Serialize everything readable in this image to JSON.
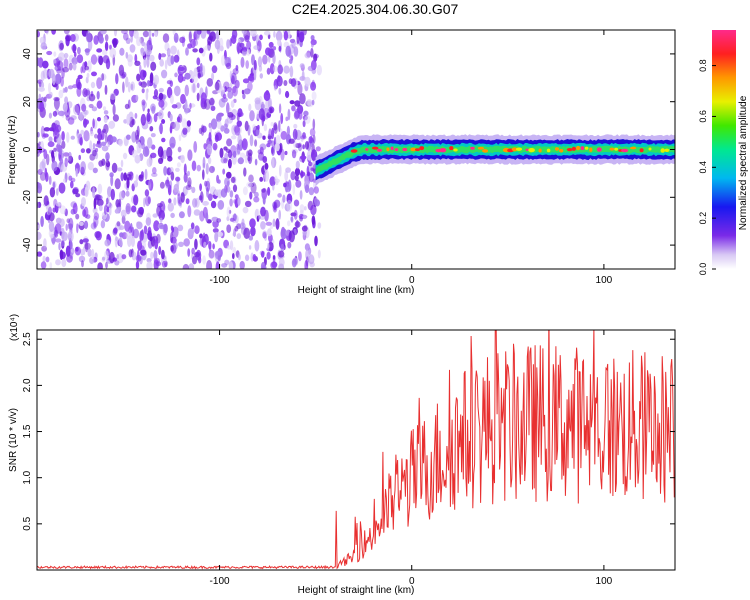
{
  "title": "C2E4.2025.304.06.30.G07",
  "colors": {
    "signal": "#e83030",
    "scatter": "#7a2ae8",
    "axis": "#000000"
  },
  "chart_data": [
    {
      "type": "heatmap",
      "xlabel": "Height of straight line (km)",
      "ylabel": "Frequency (Hz)",
      "xlim": [
        -195,
        137
      ],
      "ylim": [
        -50,
        50
      ],
      "xticks": [
        -100,
        0,
        100
      ],
      "yticks": [
        -40,
        -20,
        0,
        20,
        40
      ],
      "noise_region_x": [
        -195,
        -48
      ],
      "ridge": {
        "x": [
          -50,
          -45,
          -40,
          -35,
          -30,
          -25,
          -20,
          0,
          50,
          100,
          135
        ],
        "freq": [
          -9,
          -7,
          -5,
          -3,
          -1,
          0,
          0,
          0,
          0,
          0,
          0
        ]
      },
      "colorbar": {
        "label": "Normalized spectral amplitude",
        "ticks": [
          0.0,
          0.2,
          0.4,
          0.6,
          0.8
        ],
        "tick_labels": [
          "0.0",
          "0.2",
          "0.4",
          "0.6",
          "0.8"
        ],
        "range": [
          0,
          0.94
        ]
      }
    },
    {
      "type": "line",
      "xlabel": "Height of straight line (km)",
      "ylabel": "SNR (10 * v/v)",
      "scale_label": "(x10⁴)",
      "xlim": [
        -195,
        137
      ],
      "ylim": [
        0,
        2.6
      ],
      "xticks": [
        -100,
        0,
        100
      ],
      "yticks": [
        0.5,
        1.0,
        1.5,
        2.0,
        2.5
      ],
      "ytick_labels": [
        "0.5",
        "1.0",
        "1.5",
        "2.0",
        "2.5"
      ],
      "envelope": {
        "x": [
          -195,
          -40,
          -30,
          -20,
          -10,
          0,
          10,
          20,
          30,
          40,
          60,
          80,
          100,
          120,
          137
        ],
        "y": [
          0.03,
          0.03,
          0.15,
          0.4,
          0.75,
          1.0,
          1.15,
          1.35,
          1.45,
          1.55,
          1.6,
          1.6,
          1.55,
          1.55,
          1.55
        ]
      },
      "peak": {
        "x": 44,
        "y": 2.62
      }
    }
  ]
}
